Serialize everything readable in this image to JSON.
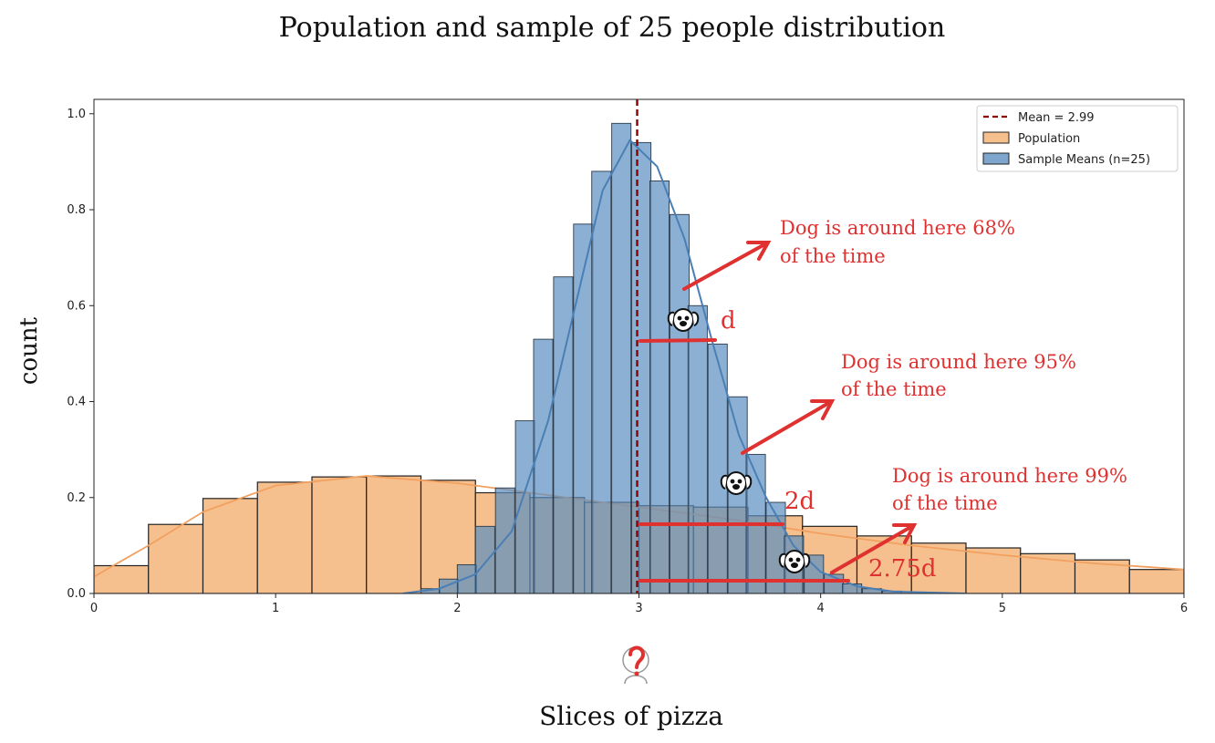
{
  "chart_data": {
    "type": "bar",
    "title": "Population and sample of 25 people distribution",
    "xlabel": "Slices of pizza",
    "ylabel": "count",
    "xlim": [
      0,
      6
    ],
    "ylim": [
      0,
      1.03
    ],
    "x_ticks": [
      "0",
      "1",
      "2",
      "3",
      "4",
      "5",
      "6"
    ],
    "y_ticks": [
      "0.0",
      "0.2",
      "0.4",
      "0.6",
      "0.8",
      "1.0"
    ],
    "x_tick_values": [
      0,
      1,
      2,
      3,
      4,
      5,
      6
    ],
    "y_tick_values": [
      0,
      0.2,
      0.4,
      0.6,
      0.8,
      1.0
    ],
    "grid": false,
    "legend_position": "top-right",
    "legend": {
      "mean_label": "Mean = 2.99",
      "population_label": "Population",
      "sample_label": "Sample Means (n=25)"
    },
    "colors": {
      "population_fill": "#f6c08e",
      "population_line": "#f2a05f",
      "sample_fill": "#5b8fc0",
      "sample_line": "#4a7fb5",
      "mean_line": "#8b0000",
      "annotation": "#e03131"
    },
    "mean": 2.99,
    "population": {
      "bin_width": 0.3,
      "bin_starts": [
        0,
        0.3,
        0.6,
        0.9,
        1.2,
        1.5,
        1.8,
        2.1,
        2.4,
        2.7,
        3.0,
        3.3,
        3.6,
        3.9,
        4.2,
        4.5,
        4.8,
        5.1,
        5.4,
        5.7
      ],
      "values": [
        0.058,
        0.144,
        0.198,
        0.232,
        0.243,
        0.245,
        0.236,
        0.21,
        0.2,
        0.19,
        0.183,
        0.18,
        0.162,
        0.14,
        0.12,
        0.105,
        0.095,
        0.083,
        0.07,
        0.05
      ],
      "kde": [
        [
          0,
          0.035
        ],
        [
          0.3,
          0.1
        ],
        [
          0.6,
          0.17
        ],
        [
          1.0,
          0.225
        ],
        [
          1.5,
          0.245
        ],
        [
          2.0,
          0.23
        ],
        [
          2.5,
          0.205
        ],
        [
          3.0,
          0.18
        ],
        [
          3.5,
          0.155
        ],
        [
          4.0,
          0.125
        ],
        [
          4.5,
          0.1
        ],
        [
          5.0,
          0.08
        ],
        [
          5.5,
          0.063
        ],
        [
          6.0,
          0.05
        ]
      ]
    },
    "sample_means": {
      "bin_width": 0.106,
      "bin_starts": [
        1.8,
        1.9,
        2.0,
        2.1,
        2.21,
        2.32,
        2.42,
        2.53,
        2.64,
        2.74,
        2.85,
        2.96,
        3.06,
        3.17,
        3.27,
        3.38,
        3.49,
        3.59,
        3.7,
        3.8,
        3.91,
        4.02,
        4.12,
        4.23,
        4.34
      ],
      "values": [
        0.01,
        0.03,
        0.06,
        0.14,
        0.22,
        0.36,
        0.53,
        0.66,
        0.77,
        0.88,
        0.98,
        0.94,
        0.86,
        0.79,
        0.6,
        0.52,
        0.41,
        0.29,
        0.19,
        0.12,
        0.08,
        0.04,
        0.02,
        0.01,
        0.005
      ],
      "kde": [
        [
          1.7,
          0.0
        ],
        [
          1.9,
          0.01
        ],
        [
          2.1,
          0.04
        ],
        [
          2.3,
          0.13
        ],
        [
          2.5,
          0.36
        ],
        [
          2.65,
          0.6
        ],
        [
          2.8,
          0.84
        ],
        [
          2.95,
          0.945
        ],
        [
          3.1,
          0.89
        ],
        [
          3.25,
          0.74
        ],
        [
          3.4,
          0.53
        ],
        [
          3.55,
          0.33
        ],
        [
          3.7,
          0.2
        ],
        [
          3.85,
          0.1
        ],
        [
          4.0,
          0.045
        ],
        [
          4.2,
          0.015
        ],
        [
          4.4,
          0.004
        ],
        [
          4.8,
          0.0
        ]
      ]
    },
    "annotations": {
      "label_1": "d",
      "label_2": "2d",
      "label_3": "2.75d",
      "note_68_line1": "Dog is around here 68%",
      "note_68_line2": "of the time",
      "note_95_line1": "Dog is around here 95%",
      "note_95_line2": "of the time",
      "note_99_line1": "Dog is around here 99%",
      "note_99_line2": "of the time"
    }
  }
}
